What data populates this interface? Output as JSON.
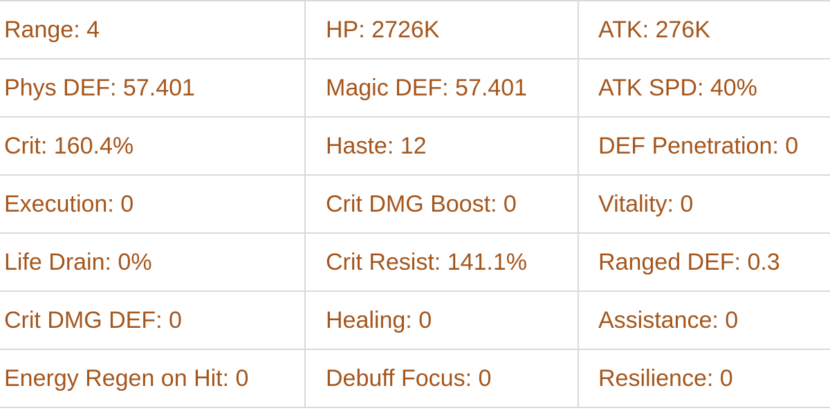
{
  "stats": [
    [
      "Range: 4",
      "HP: 2726K",
      "ATK: 276K"
    ],
    [
      "Phys DEF: 57.401",
      "Magic DEF: 57.401",
      "ATK SPD: 40%"
    ],
    [
      "Crit: 160.4%",
      "Haste: 12",
      "DEF Penetration: 0"
    ],
    [
      "Execution: 0",
      "Crit DMG Boost: 0",
      "Vitality: 0"
    ],
    [
      "Life Drain: 0%",
      "Crit Resist: 141.1%",
      "Ranged DEF: 0.3"
    ],
    [
      "Crit DMG DEF: 0",
      "Healing: 0",
      "Assistance: 0"
    ],
    [
      "Energy Regen on Hit: 0",
      "Debuff Focus: 0",
      "Resilience: 0"
    ]
  ],
  "colors": {
    "text": "#a5561c",
    "border": "#d9d9d9"
  }
}
